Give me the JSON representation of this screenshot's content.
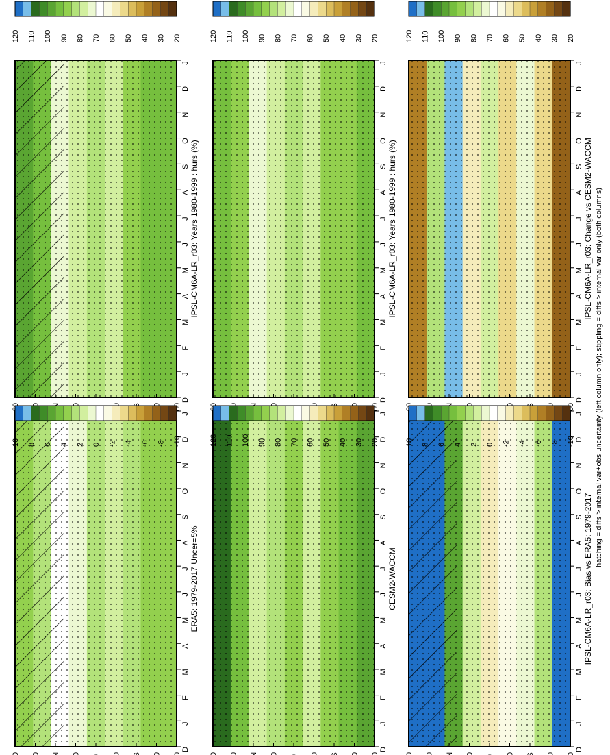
{
  "figure": {
    "footer": "hatching = diffs > internal var+obs uncertainty (left column only); stippling = diffs > internal var only (both columns)",
    "month_ticks": [
      "D",
      "J",
      "F",
      "M",
      "A",
      "M",
      "J",
      "J",
      "A",
      "S",
      "O",
      "N",
      "D",
      "J"
    ],
    "lat_ticks": [
      "80",
      "60",
      "°N",
      "20",
      "0",
      "20",
      "°S",
      "60",
      "80"
    ],
    "lat_values": [
      80,
      60,
      40,
      20,
      0,
      -20,
      -40,
      -60,
      -80
    ]
  },
  "scales": {
    "abs": {
      "labels": [
        "120",
        "110",
        "100",
        "90",
        "80",
        "70",
        "60",
        "50",
        "40",
        "30",
        "20"
      ],
      "colors": [
        "#1f6fc6",
        "#78bde8",
        "#2a6b1e",
        "#3f8c28",
        "#5aa532",
        "#76bf3e",
        "#93d04e",
        "#b3e27a",
        "#d2ef9f",
        "#ecf8d2",
        "#ffffff",
        "#fafae4",
        "#f5ecbb",
        "#ecd98b",
        "#dcbd5c",
        "#c9a039",
        "#b07f25",
        "#946219",
        "#744714",
        "#55310f"
      ]
    },
    "diff": {
      "labels": [
        "10",
        "8",
        "6",
        "4",
        "2",
        "0",
        "-2",
        "-4",
        "-6",
        "-8",
        "-10"
      ],
      "colors": [
        "#1f6fc6",
        "#78bde8",
        "#2a6b1e",
        "#3f8c28",
        "#5aa532",
        "#76bf3e",
        "#93d04e",
        "#b3e27a",
        "#d2ef9f",
        "#ecf8d2",
        "#ffffff",
        "#fafae4",
        "#f5ecbb",
        "#ecd98b",
        "#dcbd5c",
        "#c9a039",
        "#b07f25",
        "#946219",
        "#744714",
        "#55310f"
      ]
    }
  },
  "chart_data": [
    {
      "type": "heatmap",
      "title": "IPSL-CM6A-LR_r03: Years 1980-1999 : hurs (%)",
      "x": "month",
      "y": "latitude",
      "scale": "abs",
      "hatching": true,
      "stippling": true,
      "rows": [
        {
          "lat": 80,
          "v": 100
        },
        {
          "lat": 60,
          "v": 95
        },
        {
          "lat": 40,
          "v": 72
        },
        {
          "lat": 20,
          "v": 78
        },
        {
          "lat": 0,
          "v": 84
        },
        {
          "lat": -20,
          "v": 80
        },
        {
          "lat": -40,
          "v": 86
        },
        {
          "lat": -60,
          "v": 92
        },
        {
          "lat": -80,
          "v": 95
        }
      ]
    },
    {
      "type": "heatmap",
      "title": "IPSL-CM6A-LR_r03: Years 1980-1999 : hurs (%)",
      "x": "month",
      "y": "latitude",
      "scale": "abs",
      "hatching": false,
      "stippling": true,
      "rows": [
        {
          "lat": 80,
          "v": 95
        },
        {
          "lat": 60,
          "v": 90
        },
        {
          "lat": 40,
          "v": 75
        },
        {
          "lat": 20,
          "v": 80
        },
        {
          "lat": 0,
          "v": 85
        },
        {
          "lat": -20,
          "v": 78
        },
        {
          "lat": -40,
          "v": 86
        },
        {
          "lat": -60,
          "v": 90
        },
        {
          "lat": -80,
          "v": 93
        }
      ]
    },
    {
      "type": "heatmap",
      "title": "ERA5: 1979-2017 Uncer=5%",
      "x": "month",
      "y": "latitude",
      "scale": "abs",
      "hatching": true,
      "stippling": true,
      "rows": [
        {
          "lat": 80,
          "v": 90
        },
        {
          "lat": 60,
          "v": 84
        },
        {
          "lat": 40,
          "v": 68
        },
        {
          "lat": 20,
          "v": 74
        },
        {
          "lat": 0,
          "v": 84
        },
        {
          "lat": -20,
          "v": 78
        },
        {
          "lat": -40,
          "v": 84
        },
        {
          "lat": -60,
          "v": 90
        },
        {
          "lat": -80,
          "v": 88
        }
      ]
    },
    {
      "type": "heatmap",
      "title": "CESM2-WACCM",
      "x": "month",
      "y": "latitude",
      "scale": "abs",
      "hatching": false,
      "stippling": true,
      "rows": [
        {
          "lat": 80,
          "v": 110
        },
        {
          "lat": 60,
          "v": 95
        },
        {
          "lat": 40,
          "v": 78
        },
        {
          "lat": 20,
          "v": 82
        },
        {
          "lat": 0,
          "v": 86
        },
        {
          "lat": -20,
          "v": 78
        },
        {
          "lat": -40,
          "v": 88
        },
        {
          "lat": -60,
          "v": 92
        },
        {
          "lat": -80,
          "v": 96
        }
      ]
    },
    {
      "type": "heatmap",
      "title": "IPSL-CM6A-LR_r03: Bias vs ERA5: 1979-2017",
      "x": "month",
      "y": "latitude",
      "scale": "diff",
      "hatching": true,
      "stippling": true,
      "rows": [
        {
          "lat": 80,
          "v": 11
        },
        {
          "lat": 60,
          "v": 10
        },
        {
          "lat": 40,
          "v": 6
        },
        {
          "lat": 20,
          "v": 2
        },
        {
          "lat": 0,
          "v": -2
        },
        {
          "lat": -20,
          "v": -1
        },
        {
          "lat": -40,
          "v": 1
        },
        {
          "lat": -60,
          "v": 3
        },
        {
          "lat": -80,
          "v": 11
        }
      ]
    },
    {
      "type": "heatmap",
      "title": "IPSL-CM6A-LR_r03: Change vs CESM2-WACCM",
      "x": "month",
      "y": "latitude",
      "scale": "diff",
      "hatching": false,
      "stippling": true,
      "rows": [
        {
          "lat": 80,
          "v": -6
        },
        {
          "lat": 60,
          "v": 3
        },
        {
          "lat": 40,
          "v": 9
        },
        {
          "lat": 20,
          "v": -2
        },
        {
          "lat": 0,
          "v": 2
        },
        {
          "lat": -20,
          "v": -3
        },
        {
          "lat": -40,
          "v": 1
        },
        {
          "lat": -60,
          "v": -3
        },
        {
          "lat": -80,
          "v": -7
        }
      ]
    }
  ]
}
